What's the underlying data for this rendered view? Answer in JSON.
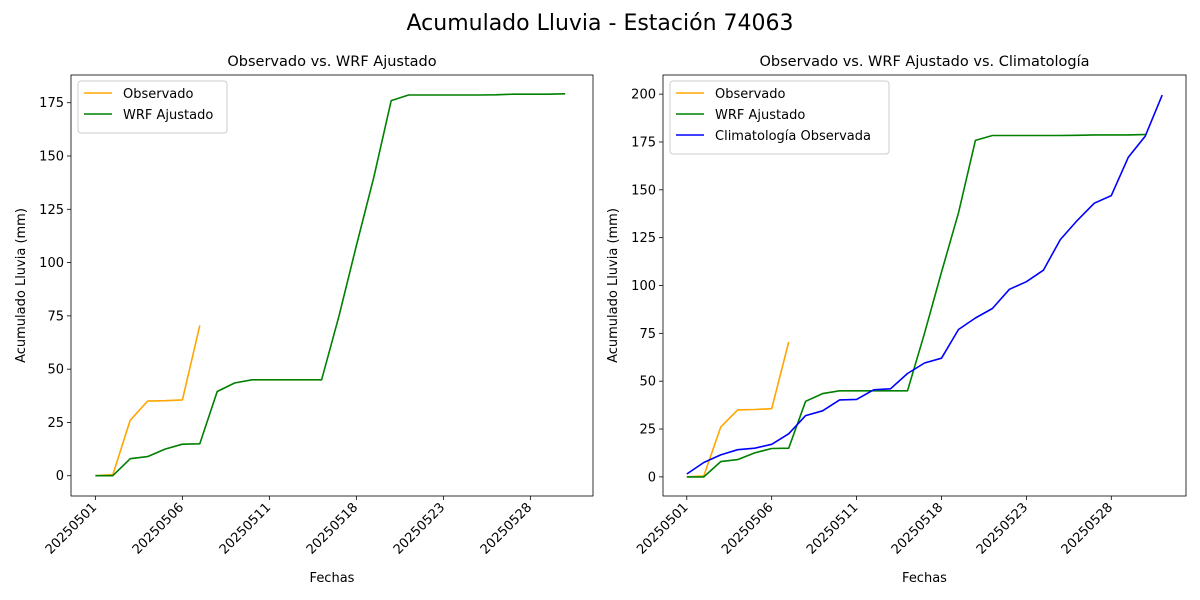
{
  "suptitle": "Acumulado Lluvia - Estación 74063",
  "colors": {
    "observado": "#ffa500",
    "wrf": "#008000",
    "climatologia": "#0000ff"
  },
  "chart_data": [
    {
      "type": "line",
      "title": "Observado vs. WRF Ajustado",
      "xlabel": "Fechas",
      "ylabel": "Acumulado Lluvia (mm)",
      "x_tick_labels": [
        "20250501",
        "20250506",
        "20250511",
        "20250518",
        "20250523",
        "20250528"
      ],
      "y_ticks": [
        0,
        25,
        50,
        75,
        100,
        125,
        150,
        175
      ],
      "ylim": [
        -9.5,
        188
      ],
      "legend_position": "upper-left",
      "series": [
        {
          "name": "Observado",
          "color_key": "observado",
          "points": [
            [
              0,
              0
            ],
            [
              1,
              0.5
            ],
            [
              2,
              26
            ],
            [
              3,
              35
            ],
            [
              4,
              35.2
            ],
            [
              5,
              35.6
            ],
            [
              6,
              70.5
            ]
          ]
        },
        {
          "name": "WRF Ajustado",
          "color_key": "wrf",
          "points": [
            [
              0,
              0
            ],
            [
              1,
              0
            ],
            [
              2,
              8
            ],
            [
              3,
              9
            ],
            [
              4,
              12.5
            ],
            [
              5,
              14.8
            ],
            [
              6,
              15
            ],
            [
              7,
              39.5
            ],
            [
              8,
              43.5
            ],
            [
              9,
              45
            ],
            [
              10,
              45
            ],
            [
              11,
              45
            ],
            [
              12,
              45
            ],
            [
              13,
              45
            ],
            [
              14,
              75
            ],
            [
              15,
              108
            ],
            [
              16,
              140
            ],
            [
              17,
              176
            ],
            [
              18,
              178.6
            ],
            [
              19,
              178.6
            ],
            [
              20,
              178.6
            ],
            [
              21,
              178.6
            ],
            [
              22,
              178.6
            ],
            [
              23,
              178.7
            ],
            [
              24,
              179
            ],
            [
              25,
              179
            ],
            [
              26,
              179
            ],
            [
              27,
              179.2
            ]
          ]
        }
      ]
    },
    {
      "type": "line",
      "title": "Observado vs. WRF Ajustado vs. Climatología",
      "xlabel": "Fechas",
      "ylabel": "Acumulado Lluvia (mm)",
      "x_tick_labels": [
        "20250501",
        "20250506",
        "20250511",
        "20250518",
        "20250523",
        "20250528"
      ],
      "y_ticks": [
        0,
        25,
        50,
        75,
        100,
        125,
        150,
        175,
        200
      ],
      "ylim": [
        -10,
        210
      ],
      "legend_position": "upper-left",
      "series": [
        {
          "name": "Observado",
          "color_key": "observado",
          "points": [
            [
              0,
              0
            ],
            [
              1,
              0.5
            ],
            [
              2,
              26
            ],
            [
              3,
              35
            ],
            [
              4,
              35.2
            ],
            [
              5,
              35.6
            ],
            [
              6,
              70.5
            ]
          ]
        },
        {
          "name": "WRF Ajustado",
          "color_key": "wrf",
          "points": [
            [
              0,
              0
            ],
            [
              1,
              0
            ],
            [
              2,
              8
            ],
            [
              3,
              9
            ],
            [
              4,
              12.5
            ],
            [
              5,
              14.8
            ],
            [
              6,
              15
            ],
            [
              7,
              39.5
            ],
            [
              8,
              43.5
            ],
            [
              9,
              45
            ],
            [
              10,
              45
            ],
            [
              11,
              45
            ],
            [
              12,
              45
            ],
            [
              13,
              45
            ],
            [
              14,
              75
            ],
            [
              15,
              107
            ],
            [
              16,
              138
            ],
            [
              17,
              175.8
            ],
            [
              18,
              178.4
            ],
            [
              19,
              178.4
            ],
            [
              20,
              178.4
            ],
            [
              21,
              178.4
            ],
            [
              22,
              178.4
            ],
            [
              23,
              178.5
            ],
            [
              24,
              178.7
            ],
            [
              25,
              178.7
            ],
            [
              26,
              178.7
            ],
            [
              27,
              178.9
            ]
          ]
        },
        {
          "name": "Climatología Observada",
          "color_key": "climatologia",
          "points": [
            [
              0,
              1.5
            ],
            [
              1,
              7.5
            ],
            [
              2,
              11.5
            ],
            [
              3,
              14.2
            ],
            [
              4,
              15
            ],
            [
              5,
              17
            ],
            [
              6,
              22.5
            ],
            [
              7,
              32
            ],
            [
              8,
              34.5
            ],
            [
              9,
              40.2
            ],
            [
              10,
              40.5
            ],
            [
              11,
              45.5
            ],
            [
              12,
              46
            ],
            [
              13,
              54
            ],
            [
              14,
              59.5
            ],
            [
              15,
              62
            ],
            [
              16,
              77
            ],
            [
              17,
              83
            ],
            [
              18,
              88
            ],
            [
              19,
              98
            ],
            [
              20,
              102
            ],
            [
              21,
              108
            ],
            [
              22,
              124
            ],
            [
              23,
              134
            ],
            [
              24,
              143
            ],
            [
              25,
              147
            ],
            [
              26,
              167
            ],
            [
              27,
              178
            ],
            [
              28,
              199.5
            ]
          ]
        }
      ]
    }
  ]
}
